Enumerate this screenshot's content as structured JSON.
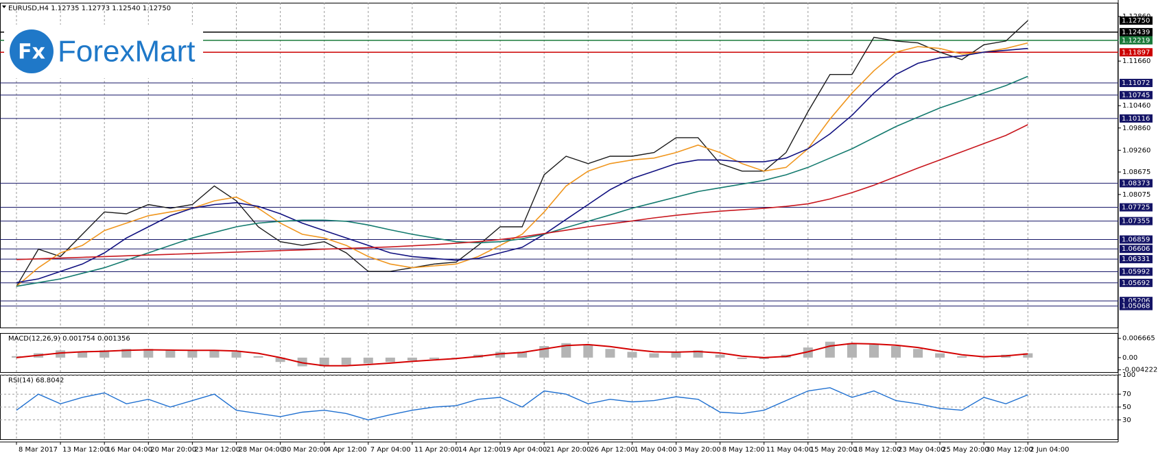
{
  "logo": {
    "mark": "Fx",
    "text": "ForexMart"
  },
  "chart_data": [
    {
      "type": "line",
      "title": "EURUSD,H4  1.12735 1.12773 1.12540 1.12750",
      "categories": [
        "8 Mar 2017",
        null,
        "13 Mar 12:00",
        null,
        "16 Mar 04:00",
        null,
        "20 Mar 20:00",
        null,
        "23 Mar 12:00",
        null,
        "28 Mar 04:00",
        null,
        "30 Mar 20:00",
        null,
        "4 Apr 12:00",
        null,
        "7 Apr 04:00",
        null,
        "11 Apr 20:00",
        null,
        "14 Apr 12:00",
        null,
        "19 Apr 04:00",
        null,
        "21 Apr 20:00",
        null,
        "26 Apr 12:00",
        null,
        "1 May 04:00",
        null,
        "3 May 20:00",
        null,
        "8 May 12:00",
        null,
        "11 May 04:00",
        null,
        "15 May 20:00",
        null,
        "18 May 12:00",
        null,
        "23 May 04:00",
        null,
        "25 May 20:00",
        null,
        "30 May 12:00",
        null,
        "2 Jun 04:00"
      ],
      "series": [
        {
          "color": "#1a1a1a",
          "values": [
            1.056,
            1.066,
            1.064,
            1.07,
            1.076,
            1.0755,
            1.078,
            1.077,
            1.078,
            1.083,
            1.079,
            1.072,
            1.068,
            1.067,
            1.068,
            1.065,
            1.06,
            1.06,
            1.061,
            1.062,
            1.0625,
            1.067,
            1.072,
            1.072,
            1.086,
            1.091,
            1.089,
            1.091,
            1.091,
            1.092,
            1.096,
            1.096,
            1.089,
            1.087,
            1.087,
            1.092,
            1.103,
            1.113,
            1.113,
            1.123,
            1.122,
            1.1215,
            1.119,
            1.117,
            1.121,
            1.122,
            1.1275
          ]
        },
        {
          "color": "#f0961e",
          "values": [
            1.056,
            1.061,
            1.065,
            1.067,
            1.071,
            1.073,
            1.075,
            1.076,
            1.077,
            1.079,
            1.08,
            1.077,
            1.073,
            1.07,
            1.069,
            1.067,
            1.064,
            1.062,
            1.061,
            1.0615,
            1.062,
            1.064,
            1.067,
            1.07,
            1.076,
            1.083,
            1.087,
            1.089,
            1.09,
            1.0905,
            1.092,
            1.094,
            1.092,
            1.089,
            1.087,
            1.088,
            1.093,
            1.101,
            1.108,
            1.114,
            1.119,
            1.1205,
            1.12,
            1.1185,
            1.119,
            1.12,
            1.1215
          ]
        },
        {
          "color": "#101080",
          "values": [
            1.057,
            1.058,
            1.06,
            1.062,
            1.065,
            1.069,
            1.072,
            1.075,
            1.077,
            1.078,
            1.0785,
            1.0775,
            1.0755,
            1.073,
            1.071,
            1.069,
            1.067,
            1.065,
            1.064,
            1.0635,
            1.063,
            1.0635,
            1.065,
            1.0665,
            1.07,
            1.074,
            1.078,
            1.082,
            1.085,
            1.087,
            1.089,
            1.09,
            1.09,
            1.0895,
            1.0895,
            1.0905,
            1.093,
            1.097,
            1.102,
            1.108,
            1.113,
            1.116,
            1.1175,
            1.118,
            1.119,
            1.1195,
            1.12
          ]
        },
        {
          "color": "#137a6e",
          "values": [
            1.056,
            1.057,
            1.058,
            1.0595,
            1.061,
            1.063,
            1.065,
            1.067,
            1.069,
            1.0705,
            1.072,
            1.073,
            1.0735,
            1.0738,
            1.0738,
            1.0735,
            1.0725,
            1.0712,
            1.07,
            1.069,
            1.068,
            1.0677,
            1.068,
            1.0688,
            1.07,
            1.0718,
            1.0735,
            1.0752,
            1.077,
            1.0785,
            1.08,
            1.0815,
            1.0825,
            1.0835,
            1.0845,
            1.086,
            1.088,
            1.0905,
            1.093,
            1.096,
            1.099,
            1.1015,
            1.104,
            1.106,
            1.108,
            1.11,
            1.1125
          ]
        },
        {
          "color": "#c8161d",
          "values": [
            1.0632,
            1.0634,
            1.0636,
            1.0638,
            1.064,
            1.0642,
            1.0644,
            1.0646,
            1.0648,
            1.065,
            1.0652,
            1.0654,
            1.0656,
            1.0658,
            1.066,
            1.0662,
            1.0664,
            1.0666,
            1.0669,
            1.0672,
            1.0676,
            1.068,
            1.0686,
            1.0693,
            1.0702,
            1.0711,
            1.072,
            1.0728,
            1.0736,
            1.0744,
            1.0751,
            1.0757,
            1.0762,
            1.0766,
            1.077,
            1.0775,
            1.0782,
            1.0795,
            1.0812,
            1.0832,
            1.0855,
            1.0878,
            1.09,
            1.0922,
            1.0944,
            1.0966,
            1.0995
          ]
        }
      ],
      "ylim": [
        1.0449,
        1.1323
      ],
      "yticks": [
        {
          "value": 1.1286,
          "label": "1.12860"
        },
        {
          "value": 1.1166,
          "label": "1.11660"
        },
        {
          "value": 1.1046,
          "label": "1.10460"
        },
        {
          "value": 1.0986,
          "label": "1.09860"
        },
        {
          "value": 1.0926,
          "label": "1.09260"
        },
        1.08675,
        {
          "value": 1.0807,
          "label": "1.08075"
        }
      ],
      "levels": [
        {
          "value": 1.12439,
          "label": "1.12439",
          "color": "#000000"
        },
        {
          "value": 1.12219,
          "label": "1.12219",
          "color": "#1a7a3a"
        },
        {
          "value": 1.11897,
          "label": "1.11897",
          "color": "#cc0000"
        },
        {
          "value": 1.11072,
          "label": "1.11072",
          "color": "#141466"
        },
        {
          "value": 1.10745,
          "label": "1.10745",
          "color": "#141466"
        },
        {
          "value": 1.10116,
          "label": "1.10116",
          "color": "#141466"
        },
        {
          "value": 1.08373,
          "label": "1.08373",
          "color": "#141466"
        },
        {
          "value": 1.07725,
          "label": "1.07725",
          "color": "#141466"
        },
        {
          "value": 1.07355,
          "label": "1.07355",
          "color": "#141466"
        },
        {
          "value": 1.06859,
          "label": "1.06859",
          "color": "#141466"
        },
        {
          "value": 1.06606,
          "label": "1.06606",
          "color": "#141466"
        },
        {
          "value": 1.06331,
          "label": "1.06331",
          "color": "#141466"
        },
        {
          "value": 1.05992,
          "label": "1.05992",
          "color": "#141466"
        },
        {
          "value": 1.05692,
          "label": "1.05692",
          "color": "#141466"
        },
        {
          "value": 1.05206,
          "label": "1.05206",
          "color": "#141466"
        },
        {
          "value": 1.05068,
          "label": "1.05068",
          "color": "#141466"
        }
      ],
      "last": {
        "value": 1.1275,
        "label": "1.12750"
      },
      "grid": true
    },
    {
      "type": "bar",
      "title": "MACD(12,26,9) 0.001754 0.001356",
      "series": [
        {
          "type": "bar",
          "color": "#b4b4b4",
          "values": [
            0.0005,
            0.0015,
            0.0025,
            0.002,
            0.0025,
            0.003,
            0.003,
            0.0025,
            0.0025,
            0.0025,
            0.002,
            0.0005,
            -0.0015,
            -0.003,
            -0.003,
            -0.0025,
            -0.002,
            -0.0015,
            -0.001,
            -0.0005,
            0.0,
            0.001,
            0.002,
            0.002,
            0.004,
            0.005,
            0.0045,
            0.003,
            0.002,
            0.0015,
            0.002,
            0.0025,
            0.001,
            -0.0005,
            -0.0005,
            0.001,
            0.0035,
            0.0055,
            0.005,
            0.0045,
            0.004,
            0.003,
            0.0015,
            0.0005,
            0.0,
            0.001,
            0.0015
          ]
        },
        {
          "type": "line",
          "color": "#d40000",
          "values": [
            0.0,
            0.0008,
            0.0016,
            0.002,
            0.0022,
            0.0025,
            0.0027,
            0.0026,
            0.0025,
            0.0025,
            0.0023,
            0.0015,
            0.0,
            -0.0018,
            -0.0028,
            -0.0028,
            -0.0024,
            -0.0019,
            -0.0013,
            -0.0008,
            -0.0003,
            0.0004,
            0.0013,
            0.0018,
            0.003,
            0.0042,
            0.0045,
            0.0038,
            0.0028,
            0.002,
            0.0019,
            0.0021,
            0.0016,
            0.0005,
            0.0,
            0.0004,
            0.002,
            0.004,
            0.0049,
            0.0047,
            0.0043,
            0.0035,
            0.0022,
            0.001,
            0.0003,
            0.0006,
            0.0013
          ]
        }
      ],
      "ylim": [
        -0.005,
        0.0085
      ],
      "yticks": [
        0.006665,
        {
          "value": 0,
          "label": "0.00"
        },
        -0.004222
      ]
    },
    {
      "type": "line",
      "title": "RSI(14) 68.8042",
      "series": [
        {
          "color": "#1e6fd0",
          "values": [
            45,
            70,
            55,
            65,
            72,
            55,
            62,
            50,
            60,
            70,
            45,
            40,
            35,
            42,
            45,
            40,
            30,
            38,
            45,
            50,
            52,
            62,
            65,
            50,
            75,
            70,
            55,
            62,
            58,
            60,
            66,
            62,
            42,
            40,
            45,
            60,
            75,
            80,
            65,
            75,
            60,
            55,
            48,
            45,
            65,
            55,
            69
          ]
        }
      ],
      "ylim": [
        0,
        100
      ],
      "yticks": [
        100,
        70,
        50,
        30
      ],
      "grid": true
    }
  ]
}
